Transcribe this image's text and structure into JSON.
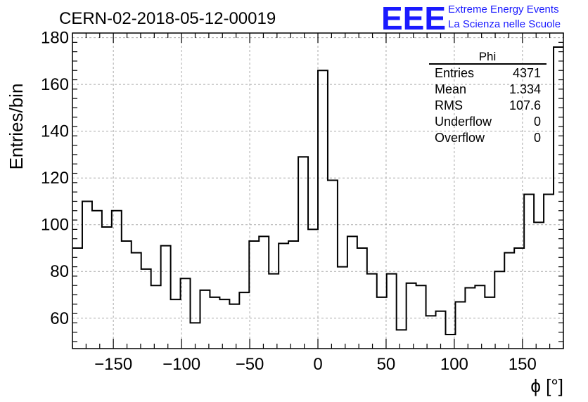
{
  "header": {
    "run_title": "CERN-02-2018-05-12-00019",
    "logo_text": "EEE",
    "logo_line1": "Extreme Energy Events",
    "logo_line2": "La Scienza nelle Scuole",
    "logo_color": "#1a1aff"
  },
  "stats_box": {
    "name": "Phi",
    "rows": [
      {
        "label": "Entries",
        "value": "4371"
      },
      {
        "label": "Mean",
        "value": "1.334"
      },
      {
        "label": "RMS",
        "value": "107.6"
      },
      {
        "label": "Underflow",
        "value": "0"
      },
      {
        "label": "Overflow",
        "value": "0"
      }
    ]
  },
  "chart_data": {
    "type": "histogram",
    "title": "CERN-02-2018-05-12-00019",
    "xlabel": "ϕ [°]",
    "ylabel": "Entries/bin",
    "xlim": [
      -180,
      180
    ],
    "ylim": [
      47,
      182
    ],
    "bin_width": 7.2,
    "x_ticks": [
      -150,
      -100,
      -50,
      0,
      50,
      100,
      150
    ],
    "x_tick_labels": [
      "−150",
      "−100",
      "−50",
      "0",
      "50",
      "100",
      "150"
    ],
    "y_ticks": [
      60,
      80,
      100,
      120,
      140,
      160,
      180
    ],
    "y_tick_labels": [
      "60",
      "80",
      "100",
      "120",
      "140",
      "160",
      "180"
    ],
    "grid": true,
    "line_color": "#000000",
    "values": [
      90,
      110,
      106,
      99,
      106,
      93,
      88,
      81,
      74,
      91,
      68,
      77,
      58,
      72,
      69,
      68,
      66,
      71,
      93,
      95,
      79,
      92,
      93,
      129,
      98,
      166,
      119,
      82,
      95,
      90,
      79,
      69,
      79,
      55,
      75,
      74,
      61,
      63,
      53,
      67,
      73,
      74,
      69,
      80,
      88,
      90,
      113,
      101,
      113,
      176
    ]
  }
}
